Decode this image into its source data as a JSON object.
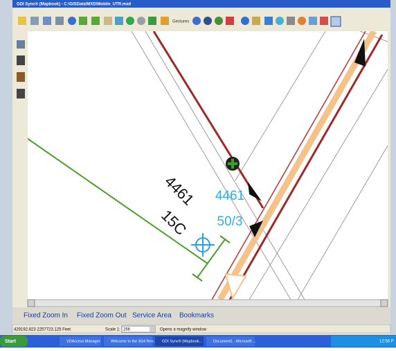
{
  "window": {
    "title": "GDI Sync® (Mapbook) - C:\\GISData\\MXD\\Mobile_UTR.mxd"
  },
  "toolbar": {
    "gestures": "Gestures"
  },
  "map": {
    "labels": [
      "4461",
      "15C",
      "4461",
      "50/3"
    ]
  },
  "bottom_buttons": [
    "Fixed Zoom In",
    "Fixed Zoom Out",
    "Service Area",
    "Bookmarks"
  ],
  "status": {
    "coordinates": "429192.823  2257723.125 Feet",
    "scale_label": "Scale 1:",
    "scale_value": "266",
    "hint": "Opens a magnify window"
  },
  "taskbar": {
    "start": "Start",
    "items": [
      "VDAccess Manager",
      "Welcome to the 3G4 Ren...",
      "GDI Sync® (Mapbook...",
      "Document1 - Microsoft ..."
    ],
    "clock": "12:56 P"
  }
}
